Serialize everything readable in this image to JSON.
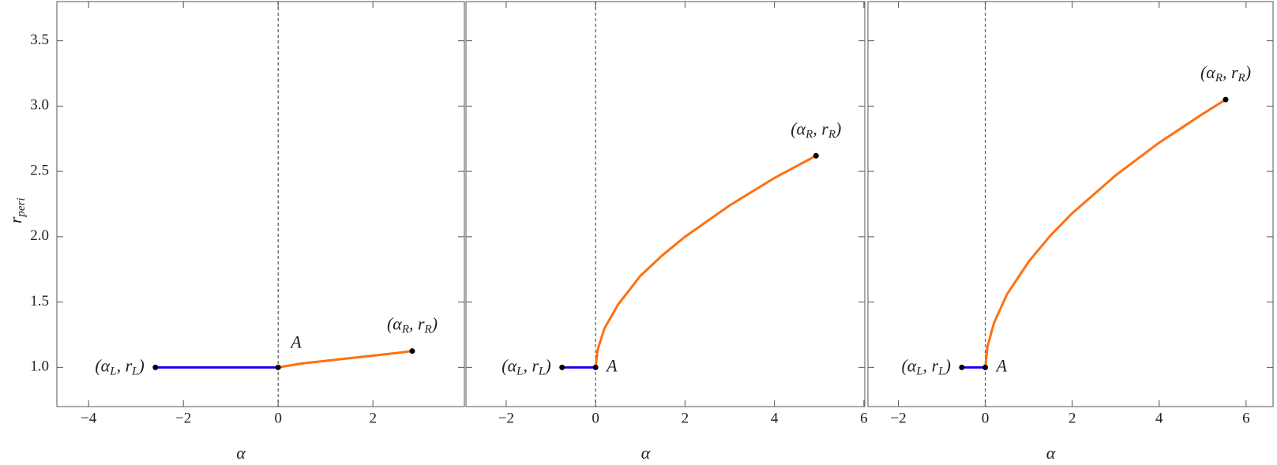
{
  "chart_data": [
    {
      "type": "line",
      "xlabel": "α",
      "ylabel": [
        "r",
        "peri"
      ],
      "xlim": [
        -4.67,
        3.93
      ],
      "ylim": [
        0.7,
        3.8
      ],
      "xticks": [
        {
          "value": -4,
          "label": "−4"
        },
        {
          "value": -2,
          "label": "−2"
        },
        0,
        2
      ],
      "yticks": [
        {
          "value": 1,
          "label": "1.0"
        },
        {
          "value": 1.5,
          "label": "1.5"
        },
        {
          "value": 2,
          "label": "2.0"
        },
        {
          "value": 2.5,
          "label": "2.5"
        },
        {
          "value": 3,
          "label": "3.0"
        },
        {
          "value": 3.5,
          "label": "3.5"
        }
      ],
      "vline": 0,
      "series": [
        {
          "color": "#2200ee",
          "x": [
            -2.59,
            0
          ],
          "values": [
            1.0,
            1.0
          ]
        },
        {
          "color": "#ff7010",
          "x": [
            0,
            0.5,
            1,
            1.5,
            2,
            2.5,
            2.83
          ],
          "values": [
            1.0,
            1.03,
            1.05,
            1.07,
            1.09,
            1.11,
            1.125
          ]
        }
      ],
      "left_label": [
        "(α",
        "L",
        ", r",
        "L",
        ")"
      ],
      "right_label": [
        "(α",
        "R",
        ", r",
        "R",
        ")"
      ],
      "origin_label": "A"
    },
    {
      "type": "line",
      "xlabel": "α",
      "xlim": [
        -2.9,
        6.02
      ],
      "ylim": [
        0.7,
        3.8
      ],
      "xticks": [
        {
          "value": -2,
          "label": "−2"
        },
        0,
        2,
        4,
        6
      ],
      "yticks": [
        1,
        1.5,
        2,
        2.5,
        3,
        3.5
      ],
      "ytick_labels": false,
      "vline": 0,
      "series": [
        {
          "color": "#2200ee",
          "x": [
            -0.75,
            0
          ],
          "values": [
            1.0,
            1.0
          ]
        },
        {
          "color": "#ff7010",
          "x": [
            0,
            0.05,
            0.2,
            0.5,
            1,
            1.5,
            2,
            3,
            4,
            4.93
          ],
          "values": [
            1.0,
            1.14,
            1.3,
            1.48,
            1.7,
            1.86,
            2.0,
            2.24,
            2.45,
            2.62
          ]
        }
      ],
      "left_label": [
        "(α",
        "L",
        ", r",
        "L",
        ")"
      ],
      "right_label": [
        "(α",
        "R",
        ", r",
        "R",
        ")"
      ],
      "origin_label": "A"
    },
    {
      "type": "line",
      "xlabel": "α",
      "xlim": [
        -2.7,
        6.62
      ],
      "ylim": [
        0.7,
        3.8
      ],
      "xticks": [
        {
          "value": -2,
          "label": "−2"
        },
        0,
        2,
        4,
        6
      ],
      "yticks": [
        1,
        1.5,
        2,
        2.5,
        3,
        3.5
      ],
      "ytick_labels": false,
      "vline": 0,
      "series": [
        {
          "color": "#2200ee",
          "x": [
            -0.54,
            0
          ],
          "values": [
            1.0,
            1.0
          ]
        },
        {
          "color": "#ff7010",
          "x": [
            0,
            0.05,
            0.2,
            0.5,
            1,
            1.5,
            2,
            3,
            4,
            5,
            5.53
          ],
          "values": [
            1.0,
            1.16,
            1.34,
            1.56,
            1.81,
            2.01,
            2.18,
            2.47,
            2.72,
            2.94,
            3.05
          ]
        }
      ],
      "left_label": [
        "(α",
        "L",
        ", r",
        "L",
        ")"
      ],
      "right_label": [
        "(α",
        "R",
        ", r",
        "R",
        ")"
      ],
      "origin_label": "A"
    }
  ]
}
